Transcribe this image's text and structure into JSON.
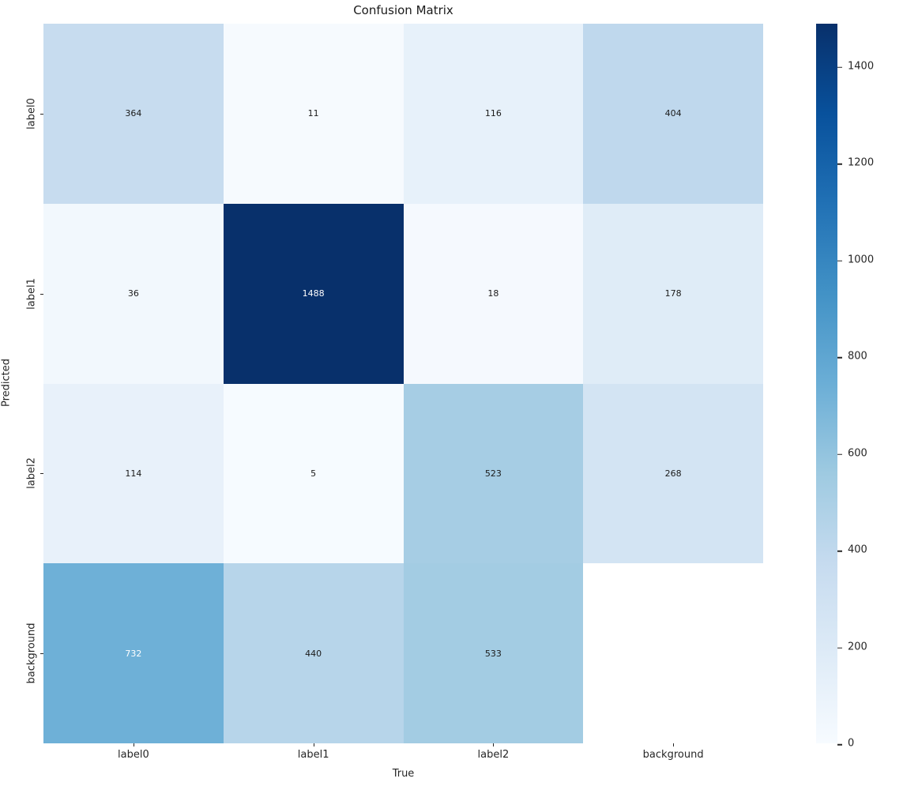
{
  "title": "Confusion Matrix",
  "chart_data": {
    "type": "heatmap",
    "title": "Confusion Matrix",
    "xlabel": "True",
    "ylabel": "Predicted",
    "x_categories": [
      "label0",
      "label1",
      "label2",
      "background"
    ],
    "y_categories": [
      "label0",
      "label1",
      "label2",
      "background"
    ],
    "values": [
      [
        364,
        11,
        116,
        404
      ],
      [
        36,
        1488,
        18,
        178
      ],
      [
        114,
        5,
        523,
        268
      ],
      [
        732,
        440,
        533,
        null
      ]
    ],
    "cell_colors": [
      [
        "#c7dcef",
        "#f6fafe",
        "#e7f1fa",
        "#bfd8ed"
      ],
      [
        "#f2f8fd",
        "#08306b",
        "#f5f9fe",
        "#dfecf7"
      ],
      [
        "#e8f1fa",
        "#f6fbff",
        "#a6cde4",
        "#d3e4f3"
      ],
      [
        "#6eb0d7",
        "#b7d5ea",
        "#a3cce3",
        "#ffffff"
      ]
    ],
    "annot_colors": [
      [
        "#1a1a1a",
        "#1a1a1a",
        "#1a1a1a",
        "#1a1a1a"
      ],
      [
        "#1a1a1a",
        "#ffffff",
        "#1a1a1a",
        "#1a1a1a"
      ],
      [
        "#1a1a1a",
        "#1a1a1a",
        "#1a1a1a",
        "#1a1a1a"
      ],
      [
        "#ffffff",
        "#1a1a1a",
        "#1a1a1a",
        "#1a1a1a"
      ]
    ],
    "colormap": "Blues",
    "colormap_stops": [
      "#f7fbff",
      "#deebf7",
      "#c6dbef",
      "#9ecae1",
      "#6baed6",
      "#4292c6",
      "#2171b5",
      "#08519c",
      "#08306b"
    ],
    "vmin": 0,
    "vmax": 1488,
    "colorbar_ticks": [
      0,
      200,
      400,
      600,
      800,
      1000,
      1200,
      1400
    ],
    "grid": false,
    "legend_position": "colorbar-right"
  }
}
